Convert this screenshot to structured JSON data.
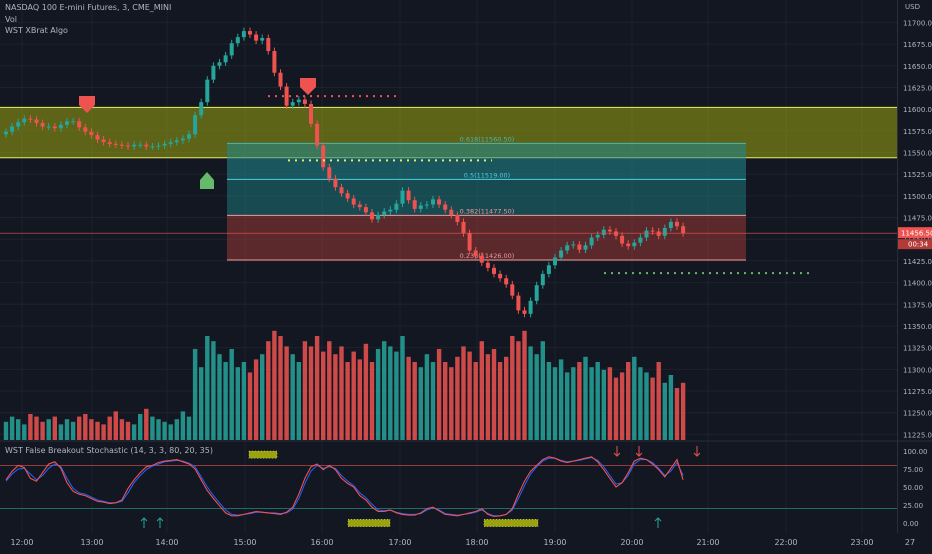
{
  "header": {
    "symbol_title": "NASDAQ 100 E-mini Futures, 3, CME_MINI",
    "vol_label": "Vol",
    "algo_label": "WST XBrat Algo",
    "currency": "USD"
  },
  "oscillator": {
    "title": "WST False Breakout Stochastic (14, 3, 3, 80, 20, 35)"
  },
  "price_badges": {
    "last": "11456.50",
    "secondary": "00:34"
  },
  "colors": {
    "background": "#131722",
    "up": "#26a69a",
    "down": "#ef5350",
    "zone_yellow": "#9aa30f",
    "fib_teal": "#1f8a8f",
    "fib_red": "#a33a35"
  },
  "chart_data": {
    "type": "candlestick",
    "price_axis": {
      "ticks": [
        "11700.00",
        "11675.00",
        "11650.00",
        "11625.00",
        "11600.00",
        "11575.00",
        "11550.00",
        "11525.00",
        "11500.00",
        "11475.00",
        "11450.00",
        "11425.00",
        "11400.00",
        "11375.00",
        "11350.00",
        "11325.00",
        "11300.00",
        "11275.00",
        "11250.00",
        "11225.00"
      ],
      "range": [
        11222,
        11712
      ]
    },
    "time_axis": {
      "ticks": [
        "12:00",
        "13:00",
        "14:00",
        "15:00",
        "16:00",
        "17:00",
        "18:00",
        "19:00",
        "20:00",
        "21:00",
        "22:00",
        "23:00",
        "27"
      ]
    },
    "fib_levels": [
      {
        "label": "0.618(11560.50)",
        "price": 11560.5
      },
      {
        "label": "0.5(11519.00)",
        "price": 11519
      },
      {
        "label": "0.382(11477.50)",
        "price": 11477.5
      },
      {
        "label": "0.236(11426.00)",
        "price": 11426
      }
    ],
    "zone": {
      "top": 11602,
      "bottom": 11544
    },
    "osc_axis": {
      "ticks": [
        "100.00",
        "75.00",
        "50.00",
        "25.00",
        "0.00"
      ],
      "levels": [
        80,
        20
      ]
    },
    "closes": [
      11574,
      11580,
      11585,
      11589,
      11588,
      11584,
      11580,
      11580,
      11578,
      11582,
      11586,
      11586,
      11579,
      11574,
      11570,
      11565,
      11562,
      11560,
      11559,
      11558,
      11557,
      11559,
      11559,
      11557,
      11557,
      11558,
      11560,
      11562,
      11564,
      11566,
      11571,
      11593,
      11608,
      11634,
      11650,
      11654,
      11662,
      11676,
      11683,
      11690,
      11686,
      11679,
      11682,
      11667,
      11642,
      11626,
      11604,
      11608,
      11611,
      11606,
      11583,
      11558,
      11533,
      11520,
      11510,
      11503,
      11497,
      11490,
      11487,
      11481,
      11473,
      11478,
      11482,
      11484,
      11491,
      11506,
      11495,
      11485,
      11489,
      11490,
      11496,
      11490,
      11484,
      11478,
      11470,
      11457,
      11437,
      11431,
      11423,
      11417,
      11410,
      11405,
      11398,
      11385,
      11368,
      11364,
      11379,
      11397,
      11410,
      11420,
      11429,
      11437,
      11443,
      11444,
      11438,
      11443,
      11452,
      11455,
      11461,
      11459,
      11454,
      11445,
      11442,
      11446,
      11452,
      11460,
      11459,
      11454,
      11463,
      11470,
      11465,
      11457
    ],
    "volumes": [
      7,
      9,
      8,
      6,
      10,
      9,
      7,
      8,
      9,
      6,
      8,
      7,
      9,
      10,
      8,
      7,
      6,
      9,
      11,
      8,
      7,
      6,
      10,
      12,
      9,
      8,
      7,
      6,
      8,
      11,
      9,
      35,
      28,
      40,
      38,
      33,
      30,
      35,
      28,
      30,
      26,
      31,
      33,
      38,
      42,
      40,
      36,
      33,
      30,
      38,
      36,
      40,
      34,
      38,
      33,
      36,
      30,
      34,
      31,
      37,
      30,
      35,
      38,
      36,
      34,
      40,
      32,
      30,
      28,
      33,
      30,
      35,
      30,
      28,
      32,
      36,
      34,
      30,
      38,
      33,
      35,
      30,
      32,
      40,
      38,
      42,
      36,
      33,
      38,
      30,
      28,
      31,
      26,
      28,
      30,
      32,
      28,
      30,
      27,
      28,
      24,
      26,
      30,
      32,
      28,
      26,
      24,
      30,
      22,
      25,
      20,
      22
    ],
    "stoch_k": [
      60,
      72,
      80,
      77,
      62,
      58,
      70,
      82,
      85,
      76,
      56,
      44,
      40,
      38,
      34,
      30,
      29,
      27,
      28,
      32,
      48,
      60,
      70,
      78,
      80,
      84,
      86,
      87,
      88,
      85,
      82,
      75,
      60,
      45,
      34,
      24,
      14,
      10,
      10,
      12,
      14,
      16,
      15,
      14,
      13,
      12,
      15,
      22,
      40,
      62,
      78,
      82,
      74,
      80,
      74,
      62,
      55,
      50,
      38,
      32,
      22,
      16,
      16,
      18,
      14,
      12,
      11,
      11,
      14,
      20,
      22,
      17,
      12,
      11,
      10,
      12,
      14,
      16,
      20,
      12,
      9,
      10,
      12,
      20,
      40,
      58,
      72,
      80,
      88,
      92,
      90,
      86,
      84,
      86,
      88,
      90,
      92,
      85,
      74,
      62,
      50,
      56,
      70,
      86,
      90,
      88,
      82,
      74,
      64,
      76,
      88,
      60
    ],
    "stoch_d": [
      58,
      68,
      75,
      76,
      68,
      60,
      66,
      76,
      82,
      78,
      62,
      48,
      42,
      40,
      36,
      32,
      30,
      28,
      28,
      30,
      42,
      56,
      66,
      74,
      79,
      82,
      85,
      86,
      87,
      86,
      83,
      78,
      64,
      50,
      38,
      28,
      18,
      12,
      11,
      12,
      13,
      15,
      15,
      14,
      14,
      13,
      14,
      19,
      34,
      55,
      72,
      80,
      76,
      78,
      76,
      66,
      58,
      52,
      42,
      35,
      26,
      18,
      17,
      18,
      15,
      13,
      12,
      12,
      13,
      18,
      21,
      18,
      13,
      12,
      11,
      12,
      13,
      15,
      18,
      13,
      10,
      10,
      12,
      18,
      34,
      52,
      68,
      78,
      86,
      90,
      90,
      87,
      85,
      86,
      87,
      89,
      91,
      87,
      78,
      66,
      54,
      56,
      66,
      82,
      88,
      88,
      84,
      76,
      66,
      72,
      84,
      66
    ]
  }
}
